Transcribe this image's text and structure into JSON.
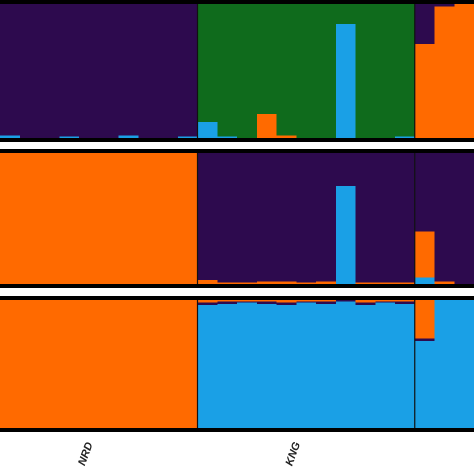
{
  "populations": [
    {
      "label": "NRD",
      "individuals": 10
    },
    {
      "label": "KNG",
      "individuals": 11
    },
    {
      "label": null,
      "individuals": 3
    }
  ],
  "chart_data": [
    {
      "type": "bar",
      "stacked": true,
      "ylim": [
        0,
        1
      ],
      "series": [
        {
          "color": "#1aa0e6",
          "values": [
            0.02,
            0,
            0,
            0.01,
            0,
            0,
            0.02,
            0,
            0,
            0.01,
            0.12,
            0.01,
            0,
            0,
            0,
            0,
            0,
            0.85,
            0,
            0,
            0.01,
            0,
            0,
            0
          ]
        },
        {
          "color": "#ff6a00",
          "values": [
            0,
            0,
            0,
            0,
            0,
            0,
            0,
            0,
            0,
            0,
            0,
            0,
            0,
            0.18,
            0.02,
            0,
            0,
            0,
            0,
            0,
            0,
            0.7,
            0.98,
            1
          ]
        },
        {
          "color": "#0f6b1c",
          "values": [
            0,
            0,
            0,
            0,
            0,
            0,
            0,
            0,
            0,
            0,
            0.88,
            0.99,
            1,
            0.82,
            0.98,
            1,
            1,
            0.15,
            1,
            1,
            0.99,
            0,
            0,
            0
          ]
        },
        {
          "color": "#2d0a4e",
          "values": [
            0.98,
            1,
            1,
            0.99,
            1,
            1,
            0.98,
            1,
            1,
            0.99,
            0,
            0,
            0,
            0,
            0,
            0,
            0,
            0,
            0,
            0,
            0,
            0.3,
            0.02,
            0
          ]
        }
      ]
    },
    {
      "type": "bar",
      "stacked": true,
      "ylim": [
        0,
        1
      ],
      "series": [
        {
          "color": "#1aa0e6",
          "values": [
            0,
            0,
            0,
            0,
            0,
            0,
            0,
            0,
            0,
            0,
            0,
            0,
            0,
            0,
            0,
            0,
            0,
            0.75,
            0,
            0,
            0,
            0.05,
            0,
            0
          ]
        },
        {
          "color": "#ff6a00",
          "values": [
            1,
            1,
            1,
            1,
            1,
            1,
            1,
            1,
            1,
            1,
            0.03,
            0.01,
            0.01,
            0.02,
            0.02,
            0.01,
            0.02,
            0,
            0.01,
            0.01,
            0.01,
            0.35,
            0.02,
            0
          ]
        },
        {
          "color": "#2d0a4e",
          "values": [
            0,
            0,
            0,
            0,
            0,
            0,
            0,
            0,
            0,
            0,
            0.97,
            0.99,
            0.99,
            0.98,
            0.98,
            0.99,
            0.98,
            0.25,
            0.99,
            0.99,
            0.99,
            0.6,
            0.98,
            1
          ]
        }
      ]
    },
    {
      "type": "bar",
      "stacked": true,
      "ylim": [
        0,
        1
      ],
      "series": [
        {
          "color": "#1aa0e6",
          "values": [
            0,
            0,
            0,
            0,
            0,
            0,
            0,
            0,
            0,
            0,
            0.96,
            0.97,
            0.98,
            0.97,
            0.96,
            0.98,
            0.97,
            0.99,
            0.96,
            0.98,
            0.97,
            0.68,
            1,
            1
          ]
        },
        {
          "color": "#2d0a4e",
          "values": [
            0,
            0,
            0,
            0,
            0,
            0,
            0,
            0,
            0,
            0,
            0.02,
            0.02,
            0.01,
            0.02,
            0.02,
            0.01,
            0.02,
            0.01,
            0.02,
            0.01,
            0.02,
            0.02,
            0,
            0
          ]
        },
        {
          "color": "#ff6a00",
          "values": [
            1,
            1,
            1,
            1,
            1,
            1,
            1,
            1,
            1,
            1,
            0.02,
            0.01,
            0.01,
            0.01,
            0.02,
            0.01,
            0.01,
            0,
            0.02,
            0.01,
            0.01,
            0.3,
            0,
            0
          ]
        }
      ]
    }
  ]
}
